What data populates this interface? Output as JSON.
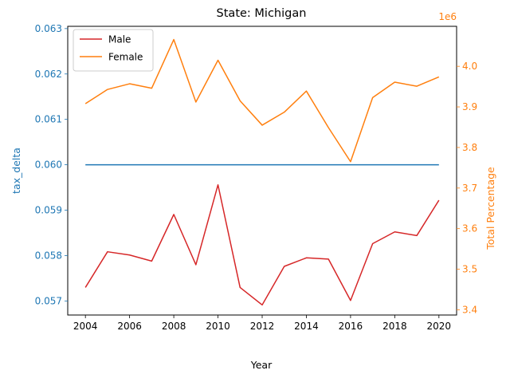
{
  "chart_data": {
    "type": "line",
    "title": "State: Michigan",
    "xlabel": "Year",
    "ylabel_left": "tax_delta",
    "ylabel_right": "Total Percentage",
    "right_axis_offset_text": "1e6",
    "x": [
      2004,
      2005,
      2006,
      2007,
      2008,
      2009,
      2010,
      2011,
      2012,
      2013,
      2014,
      2015,
      2016,
      2017,
      2018,
      2019,
      2020
    ],
    "x_ticks": [
      "2004",
      "2006",
      "2008",
      "2010",
      "2012",
      "2014",
      "2016",
      "2018",
      "2020"
    ],
    "xlim": [
      2003.2,
      2020.8
    ],
    "ylim_left": [
      0.05669,
      0.06305
    ],
    "y_ticks_left": [
      "0.057",
      "0.058",
      "0.059",
      "0.060",
      "0.061",
      "0.062",
      "0.063"
    ],
    "ylim_right": [
      3.3871,
      4.0986
    ],
    "y_ticks_right": [
      "3.4",
      "3.5",
      "3.6",
      "3.7",
      "3.8",
      "3.9",
      "4.0"
    ],
    "legend_position": "upper-left",
    "grid": false,
    "series": [
      {
        "name": "Male",
        "axis": "right",
        "color": "#d62728",
        "values": [
          3.455,
          3.543,
          3.535,
          3.52,
          3.635,
          3.511,
          3.708,
          3.455,
          3.412,
          3.507,
          3.528,
          3.525,
          3.423,
          3.563,
          3.592,
          3.583,
          3.67
        ]
      },
      {
        "name": "Female",
        "axis": "right",
        "color": "#ff7f0e",
        "values": [
          3.908,
          3.943,
          3.957,
          3.946,
          4.066,
          3.912,
          4.015,
          3.915,
          3.855,
          3.887,
          3.939,
          3.849,
          3.765,
          3.923,
          3.961,
          3.951,
          3.974
        ]
      },
      {
        "axis": "left",
        "color": "#1f77b4",
        "values": [
          0.06,
          0.06,
          0.06,
          0.06,
          0.06,
          0.06,
          0.06,
          0.06,
          0.06,
          0.06,
          0.06,
          0.06,
          0.06,
          0.06,
          0.06,
          0.06,
          0.06
        ]
      }
    ]
  }
}
